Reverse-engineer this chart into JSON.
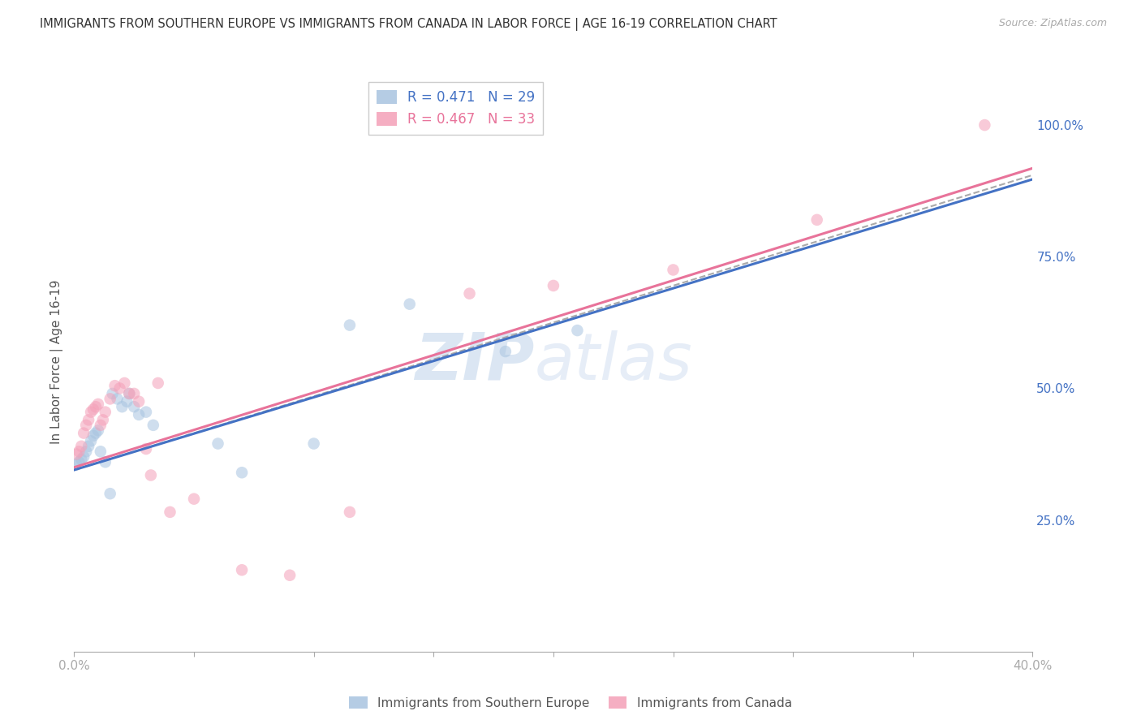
{
  "title": "IMMIGRANTS FROM SOUTHERN EUROPE VS IMMIGRANTS FROM CANADA IN LABOR FORCE | AGE 16-19 CORRELATION CHART",
  "source": "Source: ZipAtlas.com",
  "ylabel": "In Labor Force | Age 16-19",
  "watermark_zip": "ZIP",
  "watermark_atlas": "atlas",
  "blue_series": {
    "name": "Immigrants from Southern Europe",
    "color": "#a8c4e0",
    "line_color": "#4472c4",
    "R": 0.471,
    "N": 29,
    "x": [
      0.001,
      0.002,
      0.003,
      0.004,
      0.005,
      0.006,
      0.007,
      0.008,
      0.009,
      0.01,
      0.011,
      0.013,
      0.015,
      0.016,
      0.018,
      0.02,
      0.022,
      0.023,
      0.025,
      0.027,
      0.03,
      0.033,
      0.06,
      0.07,
      0.1,
      0.115,
      0.14,
      0.18,
      0.21
    ],
    "y": [
      0.355,
      0.36,
      0.365,
      0.37,
      0.38,
      0.39,
      0.4,
      0.41,
      0.415,
      0.42,
      0.38,
      0.36,
      0.3,
      0.49,
      0.48,
      0.465,
      0.475,
      0.49,
      0.465,
      0.45,
      0.455,
      0.43,
      0.395,
      0.34,
      0.395,
      0.62,
      0.66,
      0.57,
      0.61
    ]
  },
  "pink_series": {
    "name": "Immigrants from Canada",
    "color": "#f4a0b8",
    "line_color": "#e8739a",
    "R": 0.467,
    "N": 33,
    "x": [
      0.001,
      0.002,
      0.003,
      0.004,
      0.005,
      0.006,
      0.007,
      0.008,
      0.009,
      0.01,
      0.011,
      0.012,
      0.013,
      0.015,
      0.017,
      0.019,
      0.021,
      0.023,
      0.025,
      0.027,
      0.03,
      0.032,
      0.035,
      0.04,
      0.05,
      0.07,
      0.09,
      0.115,
      0.165,
      0.2,
      0.25,
      0.31,
      0.38
    ],
    "y": [
      0.375,
      0.38,
      0.39,
      0.415,
      0.43,
      0.44,
      0.455,
      0.46,
      0.465,
      0.47,
      0.43,
      0.44,
      0.455,
      0.48,
      0.505,
      0.5,
      0.51,
      0.49,
      0.49,
      0.475,
      0.385,
      0.335,
      0.51,
      0.265,
      0.29,
      0.155,
      0.145,
      0.265,
      0.68,
      0.695,
      0.725,
      0.82,
      1.0
    ]
  },
  "blue_line": {
    "intercept": 0.345,
    "slope": 1.38
  },
  "pink_line": {
    "intercept": 0.35,
    "slope": 1.42
  },
  "dashed_line": {
    "intercept": 0.345,
    "slope": 1.4
  },
  "xmin": 0.0,
  "xmax": 0.4,
  "ymin": 0.0,
  "ymax": 1.1,
  "yticks_right": [
    0.25,
    0.5,
    0.75,
    1.0
  ],
  "ytick_labels_right": [
    "25.0%",
    "50.0%",
    "75.0%",
    "100.0%"
  ],
  "xticks": [
    0.0,
    0.05,
    0.1,
    0.15,
    0.2,
    0.25,
    0.3,
    0.35,
    0.4
  ],
  "xtick_labels": [
    "0.0%",
    "",
    "",
    "",
    "",
    "",
    "",
    "",
    "40.0%"
  ],
  "background_color": "#ffffff",
  "grid_color": "#cccccc",
  "title_color": "#333333",
  "axis_color": "#4472c4",
  "marker_size": 110,
  "marker_alpha": 0.55,
  "line_width": 2.2
}
